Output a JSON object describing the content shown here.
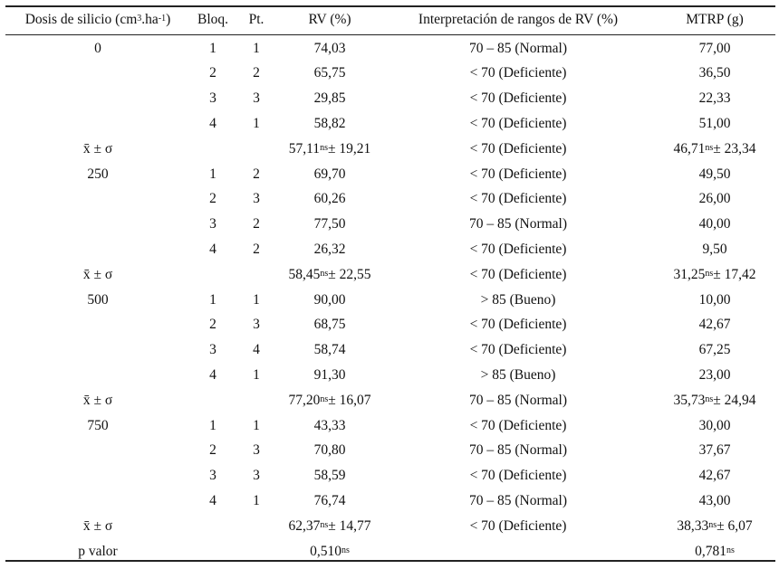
{
  "headers": {
    "dosis": "Dosis de silicio (cm",
    "dosis_sup1": "3",
    "dosis_mid": ".ha",
    "dosis_sup2": "-1",
    "dosis_end": ")",
    "bloq": "Bloq.",
    "pt": "Pt.",
    "rv": "RV (%)",
    "interp": "Interpretación de rangos de RV (%)",
    "mtrp": "MTRP (g)"
  },
  "groups": [
    {
      "dose": "0",
      "rows": [
        {
          "bloq": "1",
          "pt": "1",
          "rv": "74,03",
          "interp": "70 – 85 (Normal)",
          "mtrp": "77,00"
        },
        {
          "bloq": "2",
          "pt": "2",
          "rv": "65,75",
          "interp": "< 70 (Deficiente)",
          "mtrp": "36,50"
        },
        {
          "bloq": "3",
          "pt": "3",
          "rv": "29,85",
          "interp": "< 70 (Deficiente)",
          "mtrp": "22,33"
        },
        {
          "bloq": "4",
          "pt": "1",
          "rv": "58,82",
          "interp": "< 70 (Deficiente)",
          "mtrp": "51,00"
        }
      ],
      "summary": {
        "label": "x̄ ± σ",
        "rv_mean": "57,11",
        "rv_sup": "ns",
        "rv_sd": " ± 19,21",
        "interp": "< 70 (Deficiente)",
        "mtrp_mean": "46,71",
        "mtrp_sup": "ns",
        "mtrp_sd": " ± 23,34"
      }
    },
    {
      "dose": "250",
      "rows": [
        {
          "bloq": "1",
          "pt": "2",
          "rv": "69,70",
          "interp": "< 70 (Deficiente)",
          "mtrp": "49,50"
        },
        {
          "bloq": "2",
          "pt": "3",
          "rv": "60,26",
          "interp": "< 70 (Deficiente)",
          "mtrp": "26,00"
        },
        {
          "bloq": "3",
          "pt": "2",
          "rv": "77,50",
          "interp": "70 – 85 (Normal)",
          "mtrp": "40,00"
        },
        {
          "bloq": "4",
          "pt": "2",
          "rv": "26,32",
          "interp": "< 70 (Deficiente)",
          "mtrp": "9,50"
        }
      ],
      "summary": {
        "label": "x̄ ± σ",
        "rv_mean": "58,45",
        "rv_sup": "ns",
        "rv_sd": " ± 22,55",
        "interp": "< 70 (Deficiente)",
        "mtrp_mean": "31,25",
        "mtrp_sup": "ns",
        "mtrp_sd": " ± 17,42"
      }
    },
    {
      "dose": "500",
      "rows": [
        {
          "bloq": "1",
          "pt": "1",
          "rv": "90,00",
          "interp": "> 85 (Bueno)",
          "mtrp": "10,00"
        },
        {
          "bloq": "2",
          "pt": "3",
          "rv": "68,75",
          "interp": "< 70 (Deficiente)",
          "mtrp": "42,67"
        },
        {
          "bloq": "3",
          "pt": "4",
          "rv": "58,74",
          "interp": "< 70 (Deficiente)",
          "mtrp": "67,25"
        },
        {
          "bloq": "4",
          "pt": "1",
          "rv": "91,30",
          "interp": "> 85 (Bueno)",
          "mtrp": "23,00"
        }
      ],
      "summary": {
        "label": "x̄ ± σ",
        "rv_mean": "77,20",
        "rv_sup": "ns",
        "rv_sd": " ± 16,07",
        "interp": "70 – 85 (Normal)",
        "mtrp_mean": "35,73",
        "mtrp_sup": "ns",
        "mtrp_sd": " ± 24,94"
      }
    },
    {
      "dose": "750",
      "rows": [
        {
          "bloq": "1",
          "pt": "1",
          "rv": "43,33",
          "interp": "< 70 (Deficiente)",
          "mtrp": "30,00"
        },
        {
          "bloq": "2",
          "pt": "3",
          "rv": "70,80",
          "interp": "70 – 85 (Normal)",
          "mtrp": "37,67"
        },
        {
          "bloq": "3",
          "pt": "3",
          "rv": "58,59",
          "interp": "< 70 (Deficiente)",
          "mtrp": "42,67"
        },
        {
          "bloq": "4",
          "pt": "1",
          "rv": "76,74",
          "interp": "70 – 85 (Normal)",
          "mtrp": "43,00"
        }
      ],
      "summary": {
        "label": "x̄ ± σ",
        "rv_mean": "62,37",
        "rv_sup": "ns",
        "rv_sd": " ± 14,77",
        "interp": "< 70 (Deficiente)",
        "mtrp_mean": "38,33",
        "mtrp_sup": "ns",
        "mtrp_sd": " ± 6,07"
      }
    }
  ],
  "pvalue": {
    "label": "p valor",
    "rv": "0,510",
    "rv_sup": "ns",
    "mtrp": "0,781",
    "mtrp_sup": "ns"
  }
}
